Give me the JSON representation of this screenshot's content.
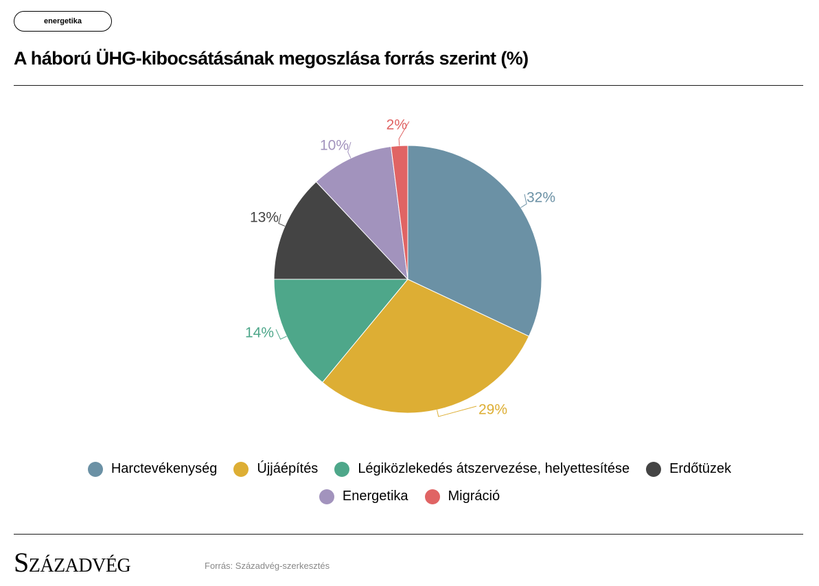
{
  "header": {
    "tag_label": "energetika",
    "title": "A háború ÜHG-kibocsátásának megoszlása forrás szerint (%)"
  },
  "chart_data": {
    "type": "pie",
    "title": "A háború ÜHG-kibocsátásának megoszlása forrás szerint (%)",
    "unit": "%",
    "legend_position": "bottom",
    "slices": [
      {
        "label": "Harctevékenység",
        "value": 32,
        "value_label": "32%",
        "color": "#6b91a5"
      },
      {
        "label": "Újjáépítés",
        "value": 29,
        "value_label": "29%",
        "color": "#ddae34"
      },
      {
        "label": "Légiközlekedés átszervezése, helyettesítése",
        "value": 14,
        "value_label": "14%",
        "color": "#4ea78a"
      },
      {
        "label": "Erdőtüzek",
        "value": 13,
        "value_label": "13%",
        "color": "#444444"
      },
      {
        "label": "Energetika",
        "value": 10,
        "value_label": "10%",
        "color": "#a293bd"
      },
      {
        "label": "Migráció",
        "value": 2,
        "value_label": "2%",
        "color": "#e06464"
      }
    ]
  },
  "footer": {
    "brand": "Századvég",
    "source": "Forrás: Századvég-szerkesztés"
  }
}
